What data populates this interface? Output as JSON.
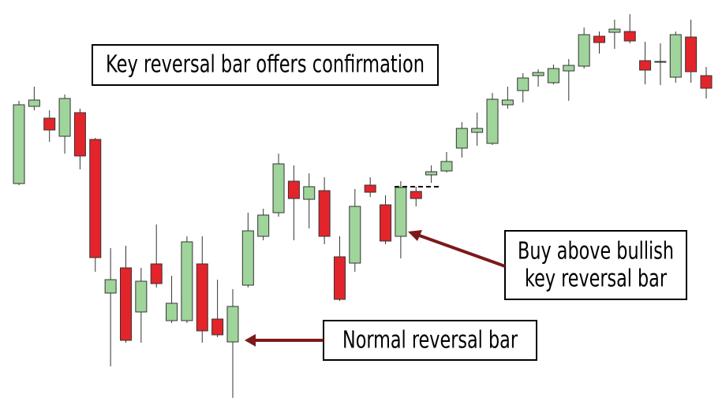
{
  "chart_data": {
    "type": "candlestick",
    "up_color": "#9fd49a",
    "down_color": "#e3242b",
    "open": [
      290,
      388,
      373,
      350,
      380,
      346,
      151,
      183,
      127,
      188,
      116,
      116,
      188,
      118,
      89,
      161,
      223,
      253,
      293,
      270,
      281,
      197,
      189,
      288,
      263,
      223,
      280,
      301,
      306,
      335,
      355,
      341,
      390,
      408,
      427,
      418,
      433,
      439,
      477,
      482,
      483,
      446,
      444,
      425,
      476,
      427
    ],
    "high": [
      395,
      413,
      383,
      403,
      385,
      348,
      208,
      211,
      183,
      238,
      173,
      223,
      223,
      168,
      156,
      253,
      258,
      328,
      313,
      303,
      298,
      223,
      283,
      298,
      275,
      293,
      286,
      313,
      330,
      368,
      380,
      405,
      413,
      430,
      435,
      441,
      448,
      488,
      483,
      498,
      505,
      470,
      468,
      483,
      498,
      438
    ],
    "low": [
      288,
      383,
      343,
      328,
      308,
      178,
      58,
      88,
      88,
      158,
      113,
      113,
      88,
      95,
      18,
      158,
      218,
      248,
      218,
      233,
      213,
      141,
      178,
      273,
      213,
      195,
      261,
      291,
      304,
      323,
      338,
      339,
      385,
      393,
      413,
      416,
      395,
      436,
      455,
      461,
      468,
      416,
      415,
      418,
      418,
      398
    ],
    "close": [
      390,
      396,
      358,
      398,
      325,
      196,
      168,
      91,
      166,
      163,
      138,
      216,
      103,
      98,
      134,
      230,
      250,
      315,
      271,
      286,
      223,
      143,
      261,
      279,
      217,
      285,
      271,
      305,
      318,
      360,
      360,
      397,
      396,
      424,
      431,
      436,
      440,
      479,
      469,
      486,
      471,
      434,
      445,
      479,
      432,
      411
    ],
    "ylim": [
      0,
      523
    ],
    "annotations": [
      {
        "lines": [
          "Key reversal bar offers confirmation"
        ]
      },
      {
        "lines": [
          "Buy above bullish",
          "key reversal bar"
        ]
      },
      {
        "lines": [
          "Normal reversal bar"
        ]
      }
    ]
  }
}
